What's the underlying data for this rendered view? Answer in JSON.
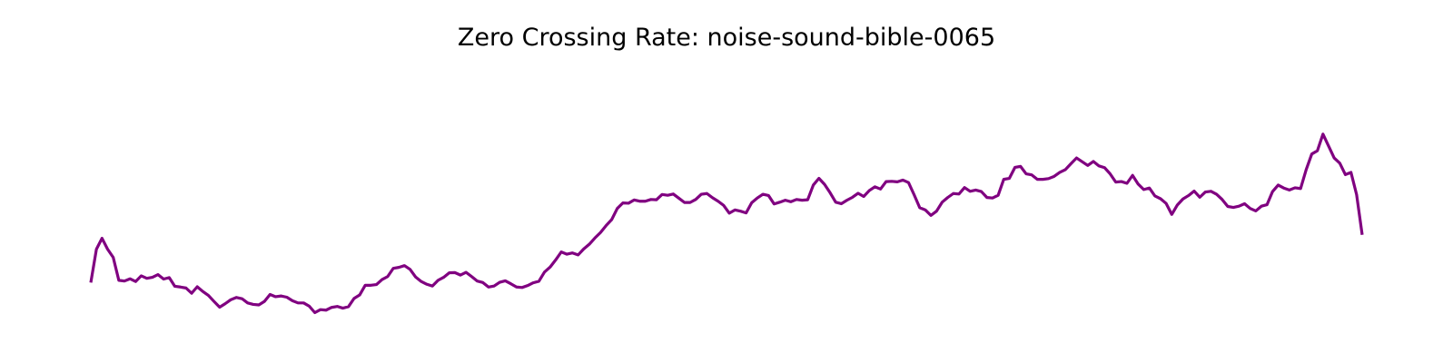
{
  "chart_data": {
    "type": "line",
    "title": "Zero Crossing Rate: noise-sound-bible-0065",
    "xlabel": "",
    "ylabel": "",
    "axes_visible": false,
    "grid": false,
    "legend": "none",
    "ylim": [
      0,
      1
    ],
    "series": [
      {
        "color": "#800080",
        "values": [
          0.163,
          0.297,
          0.341,
          0.297,
          0.264,
          0.172,
          0.169,
          0.178,
          0.167,
          0.19,
          0.18,
          0.184,
          0.195,
          0.177,
          0.183,
          0.148,
          0.145,
          0.141,
          0.12,
          0.146,
          0.127,
          0.111,
          0.087,
          0.064,
          0.078,
          0.094,
          0.103,
          0.098,
          0.081,
          0.075,
          0.073,
          0.087,
          0.115,
          0.106,
          0.109,
          0.104,
          0.09,
          0.081,
          0.081,
          0.068,
          0.042,
          0.054,
          0.052,
          0.063,
          0.067,
          0.06,
          0.066,
          0.099,
          0.113,
          0.152,
          0.152,
          0.155,
          0.175,
          0.187,
          0.22,
          0.224,
          0.231,
          0.216,
          0.185,
          0.167,
          0.156,
          0.149,
          0.172,
          0.184,
          0.202,
          0.203,
          0.193,
          0.204,
          0.187,
          0.169,
          0.163,
          0.145,
          0.149,
          0.164,
          0.17,
          0.158,
          0.145,
          0.143,
          0.151,
          0.162,
          0.168,
          0.205,
          0.225,
          0.254,
          0.286,
          0.277,
          0.282,
          0.274,
          0.298,
          0.317,
          0.342,
          0.364,
          0.392,
          0.416,
          0.461,
          0.483,
          0.482,
          0.495,
          0.49,
          0.49,
          0.497,
          0.496,
          0.517,
          0.514,
          0.519,
          0.502,
          0.485,
          0.485,
          0.497,
          0.518,
          0.521,
          0.504,
          0.49,
          0.473,
          0.442,
          0.455,
          0.45,
          0.443,
          0.484,
          0.503,
          0.518,
          0.513,
          0.479,
          0.486,
          0.494,
          0.488,
          0.497,
          0.494,
          0.496,
          0.555,
          0.582,
          0.558,
          0.524,
          0.486,
          0.48,
          0.494,
          0.506,
          0.522,
          0.509,
          0.533,
          0.548,
          0.539,
          0.569,
          0.57,
          0.568,
          0.575,
          0.565,
          0.516,
          0.464,
          0.455,
          0.433,
          0.45,
          0.486,
          0.505,
          0.521,
          0.519,
          0.545,
          0.53,
          0.535,
          0.529,
          0.505,
          0.503,
          0.514,
          0.578,
          0.582,
          0.626,
          0.63,
          0.6,
          0.596,
          0.578,
          0.578,
          0.581,
          0.59,
          0.606,
          0.617,
          0.641,
          0.664,
          0.649,
          0.634,
          0.65,
          0.632,
          0.625,
          0.6,
          0.567,
          0.569,
          0.562,
          0.594,
          0.559,
          0.537,
          0.543,
          0.511,
          0.5,
          0.481,
          0.437,
          0.475,
          0.499,
          0.513,
          0.531,
          0.506,
          0.527,
          0.53,
          0.518,
          0.497,
          0.469,
          0.465,
          0.47,
          0.48,
          0.461,
          0.451,
          0.47,
          0.476,
          0.529,
          0.555,
          0.543,
          0.535,
          0.544,
          0.541,
          0.617,
          0.68,
          0.693,
          0.76,
          0.712,
          0.664,
          0.643,
          0.597,
          0.606,
          0.517,
          0.355
        ]
      }
    ]
  }
}
